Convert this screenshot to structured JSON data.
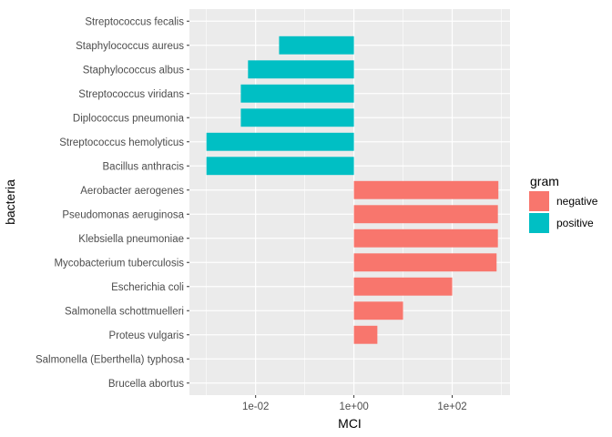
{
  "chart_data": {
    "type": "bar",
    "orientation": "horizontal",
    "xlabel": "MCI",
    "ylabel": "bacteria",
    "x_scale": "log10",
    "x_baseline": 1,
    "xlim": [
      0.00045,
      1500
    ],
    "x_ticks": [
      {
        "value": 0.01,
        "label": "1e-02"
      },
      {
        "value": 1,
        "label": "1e+00"
      },
      {
        "value": 100,
        "label": "1e+02"
      }
    ],
    "grid": true,
    "legend": {
      "title": "gram",
      "position": "right",
      "entries": [
        {
          "name": "negative",
          "color": "#F8766D"
        },
        {
          "name": "positive",
          "color": "#00BFC4"
        }
      ]
    },
    "categories": [
      "Streptococcus fecalis",
      "Staphylococcus aureus",
      "Staphylococcus albus",
      "Streptococcus viridans",
      "Diplococcus pneumonia",
      "Streptococcus hemolyticus",
      "Bacillus anthracis",
      "Aerobacter aerogenes",
      "Pseudomonas aeruginosa",
      "Klebsiella pneumoniae",
      "Mycobacterium tuberculosis",
      "Escherichia coli",
      "Salmonella schottmuelleri",
      "Proteus vulgaris",
      "Salmonella (Eberthella) typhosa",
      "Brucella abortus"
    ],
    "values": [
      1,
      0.03,
      0.007,
      0.005,
      0.005,
      0.001,
      0.001,
      870,
      850,
      850,
      800,
      100,
      10,
      3,
      1,
      1
    ],
    "groups": [
      "positive",
      "positive",
      "positive",
      "positive",
      "positive",
      "positive",
      "positive",
      "negative",
      "negative",
      "negative",
      "negative",
      "negative",
      "negative",
      "negative",
      "negative",
      "negative"
    ]
  }
}
